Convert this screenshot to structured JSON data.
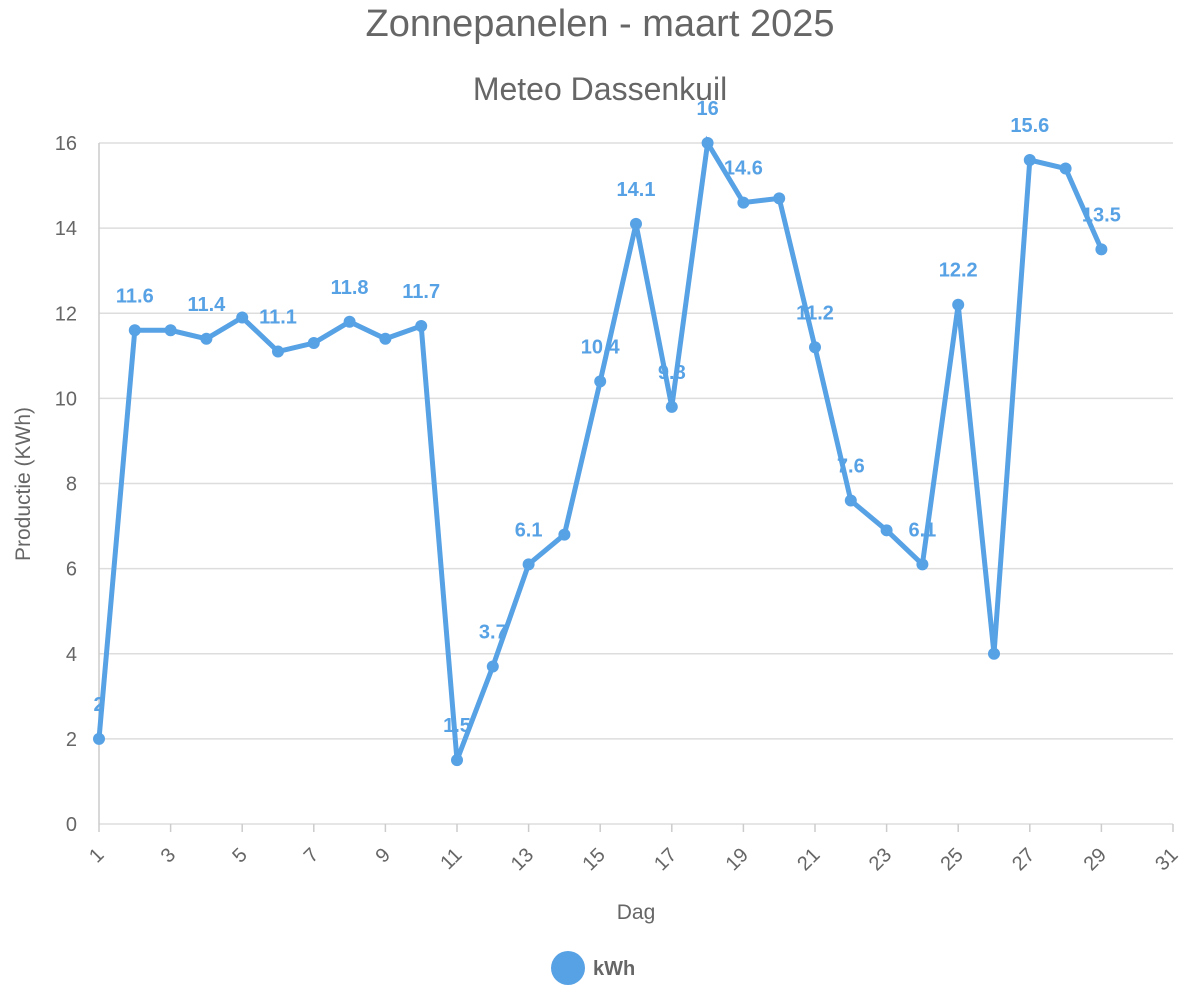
{
  "chart_data": {
    "type": "line",
    "title": "Zonnepanelen - maart 2025",
    "subtitle": "Meteo Dassenkuil",
    "x_label": "Dag",
    "y_label": "Productie (KWh)",
    "x": [
      1,
      2,
      3,
      4,
      5,
      6,
      7,
      8,
      9,
      10,
      11,
      12,
      13,
      14,
      15,
      16,
      17,
      18,
      19,
      20,
      21,
      22,
      23,
      24,
      25,
      26,
      27,
      28,
      29
    ],
    "series": [
      {
        "name": "kWh",
        "color": "#57a1e5",
        "values": [
          2,
          11.6,
          11.6,
          11.4,
          11.9,
          11.1,
          11.3,
          11.8,
          11.4,
          11.7,
          1.5,
          3.7,
          6.1,
          6.8,
          10.4,
          14.1,
          9.8,
          16,
          14.6,
          14.7,
          11.2,
          7.6,
          6.9,
          6.1,
          12.2,
          4,
          15.6,
          15.4,
          13.5
        ],
        "value_labels": [
          "2",
          "11.6",
          null,
          "11.4",
          null,
          "11.1",
          null,
          "11.8",
          null,
          "11.7",
          "1.5",
          "3.7",
          "6.1",
          null,
          "10.4",
          "14.1",
          "9.8",
          "16",
          "14.6",
          null,
          "11.2",
          "7.6",
          null,
          "6.1",
          "12.2",
          null,
          "15.6",
          null,
          "13.5"
        ]
      }
    ],
    "xlim": [
      1,
      31
    ],
    "xticks": [
      1,
      3,
      5,
      7,
      9,
      11,
      13,
      15,
      17,
      19,
      21,
      23,
      25,
      27,
      29,
      31
    ],
    "ylim": [
      0,
      16
    ],
    "yticks": [
      0,
      2,
      4,
      6,
      8,
      10,
      12,
      14,
      16
    ],
    "grid": true,
    "legend": "bottom"
  }
}
